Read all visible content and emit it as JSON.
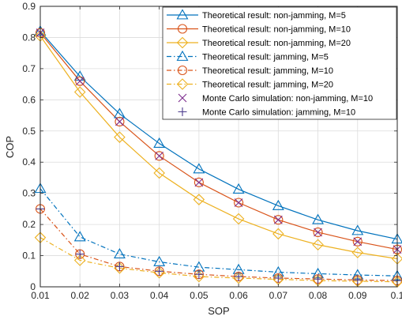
{
  "chart_data": {
    "type": "line",
    "xlabel": "SOP",
    "ylabel": "COP",
    "xlim": [
      0.01,
      0.1
    ],
    "ylim": [
      0,
      0.9
    ],
    "xticks": [
      "0.01",
      "0.02",
      "0.03",
      "0.04",
      "0.05",
      "0.06",
      "0.07",
      "0.08",
      "0.09",
      "0.1"
    ],
    "yticks": [
      "0",
      "0.1",
      "0.2",
      "0.3",
      "0.4",
      "0.5",
      "0.6",
      "0.7",
      "0.8",
      "0.9"
    ],
    "grid": true,
    "legend_position": "top-right",
    "x": [
      0.01,
      0.02,
      0.03,
      0.04,
      0.05,
      0.06,
      0.07,
      0.08,
      0.09,
      0.1
    ],
    "series": [
      {
        "name": "Theoretical result: non-jamming, M=5",
        "color": "#0072BD",
        "marker": "triangle",
        "dash": "solid",
        "values": [
          0.82,
          0.675,
          0.555,
          0.46,
          0.378,
          0.313,
          0.26,
          0.215,
          0.18,
          0.153
        ]
      },
      {
        "name": "Theoretical result: non-jamming, M=10",
        "color": "#D95319",
        "marker": "circle",
        "dash": "solid",
        "values": [
          0.815,
          0.66,
          0.53,
          0.42,
          0.335,
          0.27,
          0.215,
          0.175,
          0.145,
          0.12
        ]
      },
      {
        "name": "Theoretical result: non-jamming, M=20",
        "color": "#EDB120",
        "marker": "diamond",
        "dash": "solid",
        "values": [
          0.805,
          0.625,
          0.48,
          0.365,
          0.28,
          0.218,
          0.17,
          0.135,
          0.11,
          0.09
        ]
      },
      {
        "name": "Theoretical result: jamming, M=5",
        "color": "#0072BD",
        "marker": "triangle",
        "dash": "dashdot",
        "values": [
          0.315,
          0.16,
          0.105,
          0.08,
          0.063,
          0.055,
          0.047,
          0.042,
          0.038,
          0.035
        ]
      },
      {
        "name": "Theoretical result: jamming, M=10",
        "color": "#D95319",
        "marker": "circle",
        "dash": "dashdot",
        "values": [
          0.25,
          0.105,
          0.065,
          0.05,
          0.04,
          0.033,
          0.028,
          0.025,
          0.022,
          0.02
        ]
      },
      {
        "name": "Theoretical result: jamming, M=20",
        "color": "#EDB120",
        "marker": "diamond",
        "dash": "dashdot",
        "values": [
          0.158,
          0.085,
          0.06,
          0.045,
          0.033,
          0.028,
          0.024,
          0.02,
          0.018,
          0.016
        ]
      },
      {
        "name": "Monte Carlo simulation: non-jamming, M=10",
        "color": "#7E2F8E",
        "marker": "x",
        "dash": "none",
        "values": [
          0.815,
          0.66,
          0.53,
          0.42,
          0.335,
          0.27,
          0.215,
          0.175,
          0.145,
          0.12
        ]
      },
      {
        "name": "Monte Carlo simulation: jamming, M=10",
        "color": "#4A3A8C",
        "marker": "plus",
        "dash": "none",
        "values": [
          0.25,
          0.105,
          0.065,
          0.05,
          0.04,
          0.033,
          0.028,
          0.025,
          0.022,
          0.02
        ]
      }
    ]
  }
}
